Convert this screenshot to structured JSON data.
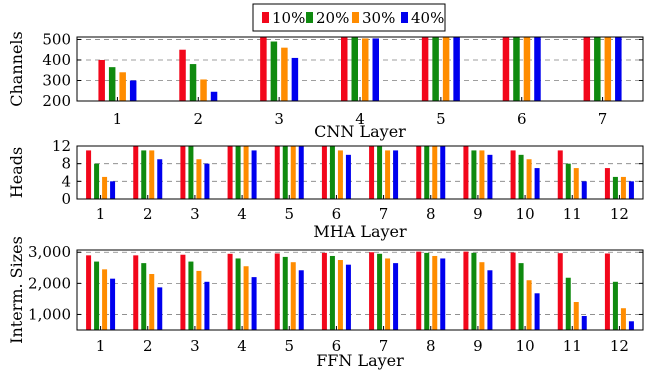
{
  "legend": [
    "10%",
    "20%",
    "30%",
    "40%"
  ],
  "colors": {
    "10%": "#f2071b",
    "20%": "#0f8a0f",
    "30%": "#ff8c00",
    "40%": "#0000ee"
  },
  "chart_data": [
    {
      "type": "bar",
      "xlabel": "CNN Layer",
      "ylabel": "Channels",
      "ylim": [
        200,
        512
      ],
      "yticks": [
        "200",
        "300",
        "400",
        "500"
      ],
      "yticks_values": [
        200,
        300,
        400,
        500
      ],
      "categories": [
        "1",
        "2",
        "3",
        "4",
        "5",
        "6",
        "7"
      ],
      "grid": "horizontal dashed",
      "series": [
        {
          "name": "10%",
          "values": [
            400,
            450,
            512,
            512,
            512,
            512,
            512
          ]
        },
        {
          "name": "20%",
          "values": [
            365,
            380,
            490,
            512,
            512,
            512,
            512
          ]
        },
        {
          "name": "30%",
          "values": [
            340,
            305,
            460,
            505,
            510,
            512,
            512
          ]
        },
        {
          "name": "40%",
          "values": [
            300,
            245,
            410,
            505,
            512,
            510,
            512
          ]
        }
      ]
    },
    {
      "type": "bar",
      "xlabel": "MHA Layer",
      "ylabel": "Heads",
      "ylim": [
        0,
        12
      ],
      "yticks": [
        "0",
        "4",
        "8",
        "12"
      ],
      "yticks_values": [
        0,
        4,
        8,
        12
      ],
      "categories": [
        "1",
        "2",
        "3",
        "4",
        "5",
        "6",
        "7",
        "8",
        "9",
        "10",
        "11",
        "12"
      ],
      "grid": "horizontal dashed",
      "series": [
        {
          "name": "10%",
          "values": [
            11,
            12,
            12,
            12,
            12,
            12,
            12,
            12,
            12,
            11,
            11,
            7
          ]
        },
        {
          "name": "20%",
          "values": [
            8,
            11,
            12,
            12,
            12,
            12,
            12,
            12,
            11,
            10,
            8,
            5
          ]
        },
        {
          "name": "30%",
          "values": [
            5,
            11,
            9,
            12,
            12,
            11,
            11,
            12,
            11,
            9,
            7,
            5
          ]
        },
        {
          "name": "40%",
          "values": [
            4,
            9,
            8,
            11,
            12,
            10,
            11,
            12,
            10,
            7,
            4,
            4
          ]
        }
      ]
    },
    {
      "type": "bar",
      "xlabel": "FFN Layer",
      "ylabel": "Interm. Sizes",
      "ylim": [
        500,
        3072
      ],
      "yticks": [
        "1,000",
        "2,000",
        "3,000"
      ],
      "yticks_values": [
        1000,
        2000,
        3000
      ],
      "categories": [
        "1",
        "2",
        "3",
        "4",
        "5",
        "6",
        "7",
        "8",
        "9",
        "10",
        "11",
        "12"
      ],
      "grid": "horizontal dashed",
      "series": [
        {
          "name": "10%",
          "values": [
            2900,
            2900,
            2920,
            2950,
            2960,
            2980,
            3000,
            3020,
            3020,
            2990,
            2970,
            2960
          ]
        },
        {
          "name": "20%",
          "values": [
            2700,
            2650,
            2700,
            2800,
            2850,
            2880,
            2950,
            2980,
            2980,
            2650,
            2180,
            2050
          ]
        },
        {
          "name": "30%",
          "values": [
            2450,
            2300,
            2400,
            2550,
            2680,
            2750,
            2800,
            2880,
            2680,
            2100,
            1400,
            1200
          ]
        },
        {
          "name": "40%",
          "values": [
            2150,
            1870,
            2050,
            2200,
            2420,
            2600,
            2650,
            2800,
            2420,
            1680,
            950,
            780
          ]
        }
      ]
    }
  ]
}
